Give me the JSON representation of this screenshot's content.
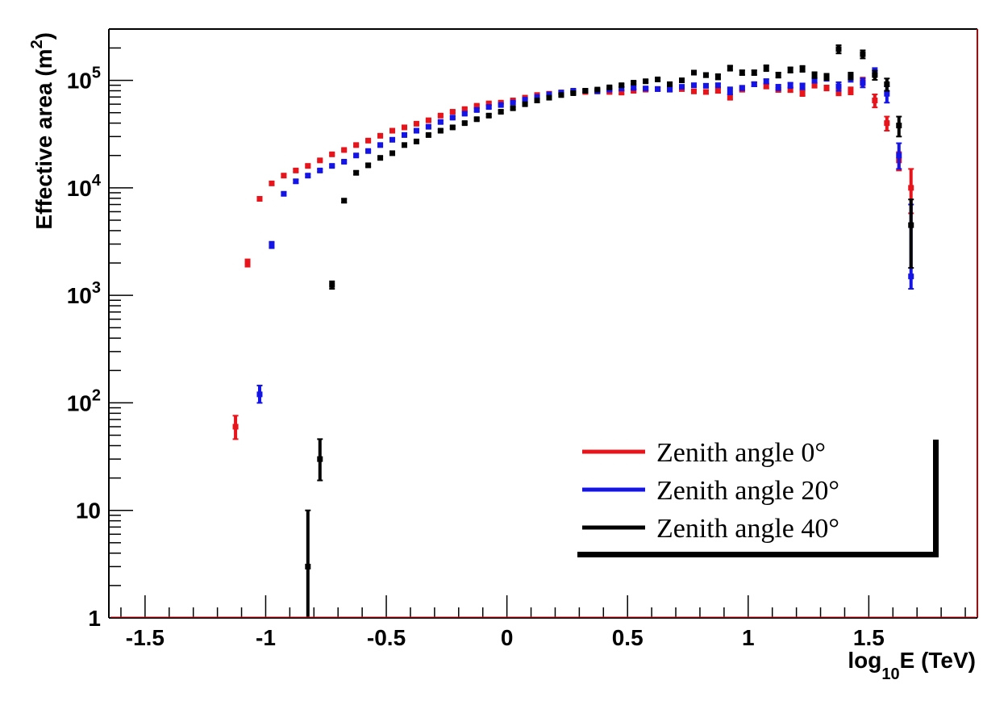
{
  "chart_data": {
    "type": "scatter",
    "title": "",
    "xlabel": {
      "main": "log",
      "sub": "10",
      "tail": "E (TeV)"
    },
    "ylabel": {
      "main": "Effective area (m",
      "sup": "2",
      "tail": ")"
    },
    "xlim": [
      -1.65,
      1.95
    ],
    "ylim": [
      1,
      300000
    ],
    "y_scale": "log",
    "x_ticks": [
      -1.5,
      -1,
      -0.5,
      0,
      0.5,
      1,
      1.5
    ],
    "x_tick_labels": [
      "-1.5",
      "-1",
      "-0.5",
      "0",
      "0.5",
      "1",
      "1.5"
    ],
    "y_tick_labels": [
      {
        "value": 1,
        "text": "1"
      },
      {
        "value": 10,
        "text": "10"
      },
      {
        "value": 100,
        "base": "10",
        "exp": "2"
      },
      {
        "value": 1000,
        "base": "10",
        "exp": "3"
      },
      {
        "value": 10000,
        "base": "10",
        "exp": "4"
      },
      {
        "value": 100000,
        "base": "10",
        "exp": "5"
      }
    ],
    "grid": false,
    "legend_position": "bottom-right",
    "series": [
      {
        "name": "Zenith angle 0°",
        "color": "#e8141b",
        "x": [
          -1.125,
          -1.075,
          -1.025,
          -0.975,
          -0.925,
          -0.875,
          -0.825,
          -0.775,
          -0.725,
          -0.675,
          -0.625,
          -0.575,
          -0.525,
          -0.475,
          -0.425,
          -0.375,
          -0.325,
          -0.275,
          -0.225,
          -0.175,
          -0.125,
          -0.075,
          -0.025,
          0.025,
          0.075,
          0.125,
          0.175,
          0.225,
          0.275,
          0.325,
          0.375,
          0.425,
          0.475,
          0.525,
          0.575,
          0.625,
          0.675,
          0.725,
          0.775,
          0.825,
          0.875,
          0.925,
          0.975,
          1.025,
          1.075,
          1.125,
          1.175,
          1.225,
          1.275,
          1.325,
          1.375,
          1.425,
          1.475,
          1.525,
          1.575,
          1.625,
          1.675
        ],
        "y": [
          60,
          2000,
          7900,
          11000,
          13000,
          14500,
          16000,
          18000,
          20500,
          22500,
          25000,
          27500,
          30500,
          34000,
          36500,
          39500,
          42500,
          47000,
          51000,
          54000,
          58000,
          61000,
          62000,
          65000,
          69000,
          73000,
          75000,
          77000,
          78000,
          78000,
          79000,
          78000,
          77000,
          80000,
          82000,
          83000,
          82000,
          83000,
          79000,
          78000,
          80000,
          70000,
          82000,
          92000,
          88000,
          82000,
          82000,
          76000,
          90000,
          85000,
          78000,
          80000,
          98000,
          65000,
          40000,
          18000,
          10000
        ],
        "y_low": [
          46,
          1850,
          7600,
          10600,
          12600,
          14100,
          15600,
          17600,
          20000,
          22000,
          24400,
          26900,
          29800,
          33200,
          35700,
          38600,
          41500,
          45900,
          49800,
          52700,
          56700,
          59600,
          60500,
          63500,
          67400,
          71300,
          73200,
          75100,
          76100,
          76000,
          76900,
          75800,
          74700,
          77500,
          79400,
          80300,
          79200,
          80100,
          75800,
          74800,
          76500,
          66000,
          78500,
          88000,
          84000,
          78000,
          77800,
          71500,
          85500,
          80500,
          72500,
          74000,
          90000,
          56000,
          34000,
          14500,
          5800
        ],
        "y_high": [
          76,
          2160,
          8200,
          11400,
          13400,
          14900,
          16400,
          18400,
          21000,
          23000,
          25600,
          28100,
          31200,
          34800,
          37300,
          40400,
          43500,
          48100,
          52200,
          55300,
          59300,
          62400,
          63500,
          66500,
          70600,
          74700,
          76800,
          78900,
          79900,
          80000,
          81100,
          80200,
          79300,
          82500,
          84600,
          85700,
          84800,
          85900,
          82200,
          81200,
          83500,
          74000,
          85500,
          96000,
          92000,
          86000,
          86200,
          80500,
          94500,
          89500,
          83500,
          86000,
          106000,
          74000,
          46000,
          21500,
          15000
        ]
      },
      {
        "name": "Zenith angle 20°",
        "color": "#1414e6",
        "x": [
          -1.025,
          -0.975,
          -0.925,
          -0.875,
          -0.825,
          -0.775,
          -0.725,
          -0.675,
          -0.625,
          -0.575,
          -0.525,
          -0.475,
          -0.425,
          -0.375,
          -0.325,
          -0.275,
          -0.225,
          -0.175,
          -0.125,
          -0.075,
          -0.025,
          0.025,
          0.075,
          0.125,
          0.175,
          0.225,
          0.275,
          0.325,
          0.375,
          0.425,
          0.475,
          0.525,
          0.575,
          0.625,
          0.675,
          0.725,
          0.775,
          0.825,
          0.875,
          0.925,
          0.975,
          1.025,
          1.075,
          1.125,
          1.175,
          1.225,
          1.275,
          1.325,
          1.375,
          1.425,
          1.475,
          1.525,
          1.575,
          1.625,
          1.675
        ],
        "y": [
          120,
          2950,
          8800,
          11500,
          13000,
          14500,
          16000,
          17500,
          20000,
          22000,
          25000,
          28000,
          31000,
          34000,
          37000,
          41000,
          45000,
          49000,
          53000,
          56500,
          59000,
          62000,
          66000,
          70000,
          74000,
          77000,
          80000,
          80000,
          79000,
          82000,
          84000,
          85000,
          84000,
          83000,
          82000,
          87000,
          90000,
          89000,
          90000,
          80000,
          85000,
          92000,
          98000,
          86000,
          90000,
          88000,
          100000,
          105000,
          88000,
          105000,
          95000,
          120000,
          75000,
          20000,
          1500
        ],
        "y_low": [
          100,
          2750,
          8500,
          11100,
          12600,
          14100,
          15600,
          17100,
          19500,
          21500,
          24400,
          27300,
          30200,
          33100,
          36000,
          39900,
          43800,
          47700,
          51600,
          55000,
          57400,
          60300,
          64200,
          68100,
          72000,
          74900,
          77800,
          77700,
          76700,
          79600,
          81500,
          82400,
          81300,
          80300,
          79200,
          84000,
          86800,
          85700,
          86500,
          74000,
          81000,
          88000,
          93500,
          81000,
          85000,
          82500,
          95000,
          99000,
          80000,
          97000,
          86000,
          110000,
          62000,
          15000,
          1150
        ],
        "y_high": [
          145,
          3150,
          9100,
          11900,
          13400,
          14900,
          16400,
          17900,
          20500,
          22500,
          25600,
          28700,
          31800,
          34900,
          38000,
          42100,
          46200,
          50300,
          54400,
          58000,
          60600,
          63700,
          67800,
          71900,
          76000,
          79100,
          82200,
          82300,
          81300,
          84400,
          86500,
          87600,
          86700,
          85700,
          84800,
          90000,
          93200,
          92300,
          93500,
          86000,
          89000,
          96000,
          102500,
          91000,
          95000,
          93500,
          105000,
          111000,
          96000,
          113000,
          104000,
          130000,
          88000,
          26000,
          7000
        ]
      },
      {
        "name": "Zenith angle 40°",
        "color": "#000000",
        "x": [
          -0.825,
          -0.775,
          -0.725,
          -0.675,
          -0.625,
          -0.575,
          -0.525,
          -0.475,
          -0.425,
          -0.375,
          -0.325,
          -0.275,
          -0.225,
          -0.175,
          -0.125,
          -0.075,
          -0.025,
          0.025,
          0.075,
          0.125,
          0.175,
          0.225,
          0.275,
          0.325,
          0.375,
          0.425,
          0.475,
          0.525,
          0.575,
          0.625,
          0.675,
          0.725,
          0.775,
          0.825,
          0.875,
          0.925,
          0.975,
          1.025,
          1.075,
          1.125,
          1.175,
          1.225,
          1.275,
          1.325,
          1.375,
          1.425,
          1.475,
          1.525,
          1.575,
          1.625,
          1.675
        ],
        "y": [
          3,
          30,
          1250,
          7600,
          13800,
          16200,
          19000,
          21000,
          25000,
          27000,
          31000,
          34000,
          36500,
          40000,
          43500,
          47000,
          51000,
          55000,
          60000,
          65000,
          69000,
          73000,
          76000,
          80000,
          82000,
          86000,
          90000,
          95000,
          98000,
          102000,
          92000,
          100000,
          118000,
          112000,
          108000,
          130000,
          118000,
          118000,
          130000,
          112000,
          125000,
          128000,
          112000,
          108000,
          195000,
          110000,
          175000,
          112000,
          92000,
          38000,
          4500
        ],
        "y_low": [
          1,
          19,
          1150,
          7300,
          13300,
          15700,
          18400,
          20400,
          24300,
          26300,
          30200,
          33100,
          35500,
          38900,
          42300,
          45700,
          49600,
          53500,
          58400,
          63200,
          67100,
          71000,
          73900,
          77800,
          79700,
          83600,
          87500,
          92300,
          95200,
          99000,
          89000,
          96500,
          113000,
          107000,
          102000,
          123000,
          112000,
          112000,
          122000,
          106000,
          118000,
          120000,
          105000,
          101000,
          178000,
          102000,
          160000,
          101000,
          80000,
          30000,
          1800
        ],
        "y_high": [
          10,
          46,
          1350,
          7900,
          14300,
          16700,
          19600,
          21600,
          25700,
          27700,
          31800,
          34900,
          37500,
          41100,
          44700,
          48300,
          52400,
          56500,
          61600,
          66800,
          70900,
          75000,
          78100,
          82200,
          84300,
          88400,
          92500,
          97700,
          100800,
          105000,
          95000,
          103500,
          123000,
          117000,
          114000,
          137000,
          124000,
          124000,
          138000,
          118000,
          132000,
          136000,
          119000,
          115000,
          212000,
          118000,
          190000,
          123000,
          104000,
          46000,
          7800
        ]
      }
    ]
  }
}
